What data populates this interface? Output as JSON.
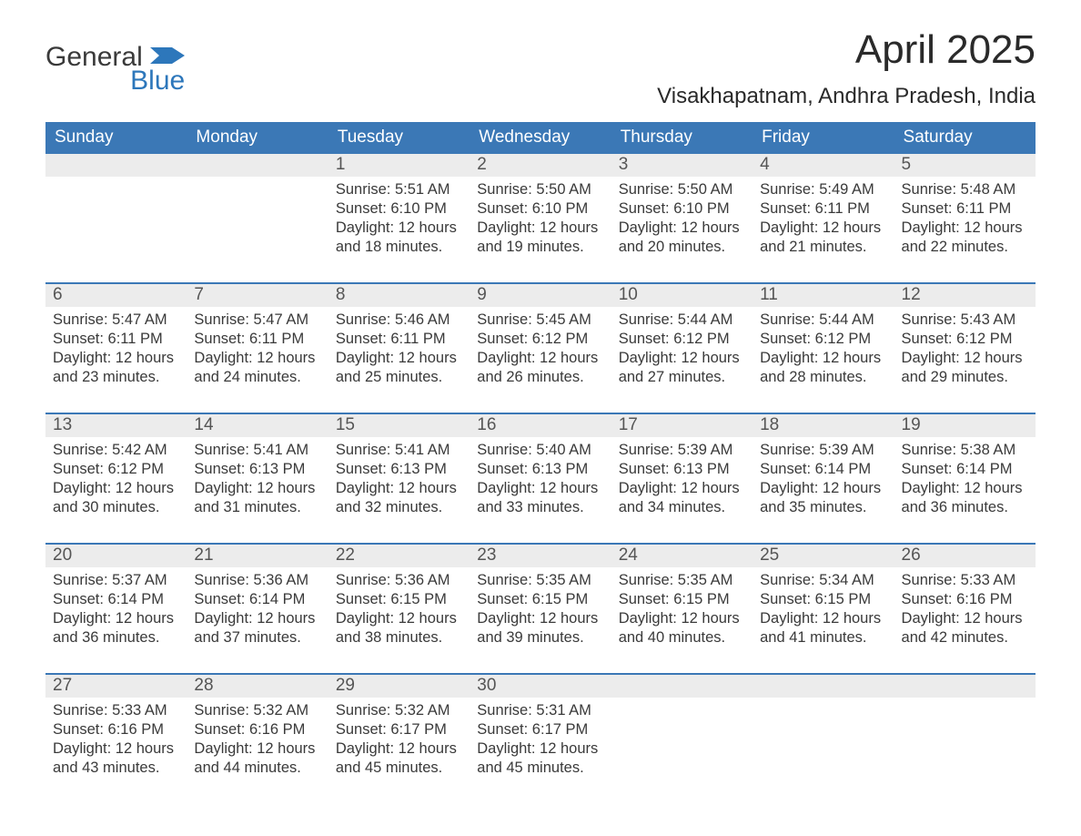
{
  "brand": {
    "general": "General",
    "blue": "Blue",
    "icon_color": "#2d77bb"
  },
  "header": {
    "title": "April 2025",
    "subtitle": "Visakhapatnam, Andhra Pradesh, India"
  },
  "colors": {
    "header_row_bg": "#3b78b6",
    "header_row_text": "#ffffff",
    "week_topline": "#3b78b6",
    "date_bg": "#ececec",
    "date_text": "#555555",
    "body_text": "#3a3a3a",
    "page_bg": "#ffffff"
  },
  "day_headers": [
    "Sunday",
    "Monday",
    "Tuesday",
    "Wednesday",
    "Thursday",
    "Friday",
    "Saturday"
  ],
  "weeks": [
    [
      {
        "date": "",
        "lines": []
      },
      {
        "date": "",
        "lines": []
      },
      {
        "date": "1",
        "lines": [
          "Sunrise: 5:51 AM",
          "Sunset: 6:10 PM",
          "Daylight: 12 hours and 18 minutes."
        ]
      },
      {
        "date": "2",
        "lines": [
          "Sunrise: 5:50 AM",
          "Sunset: 6:10 PM",
          "Daylight: 12 hours and 19 minutes."
        ]
      },
      {
        "date": "3",
        "lines": [
          "Sunrise: 5:50 AM",
          "Sunset: 6:10 PM",
          "Daylight: 12 hours and 20 minutes."
        ]
      },
      {
        "date": "4",
        "lines": [
          "Sunrise: 5:49 AM",
          "Sunset: 6:11 PM",
          "Daylight: 12 hours and 21 minutes."
        ]
      },
      {
        "date": "5",
        "lines": [
          "Sunrise: 5:48 AM",
          "Sunset: 6:11 PM",
          "Daylight: 12 hours and 22 minutes."
        ]
      }
    ],
    [
      {
        "date": "6",
        "lines": [
          "Sunrise: 5:47 AM",
          "Sunset: 6:11 PM",
          "Daylight: 12 hours and 23 minutes."
        ]
      },
      {
        "date": "7",
        "lines": [
          "Sunrise: 5:47 AM",
          "Sunset: 6:11 PM",
          "Daylight: 12 hours and 24 minutes."
        ]
      },
      {
        "date": "8",
        "lines": [
          "Sunrise: 5:46 AM",
          "Sunset: 6:11 PM",
          "Daylight: 12 hours and 25 minutes."
        ]
      },
      {
        "date": "9",
        "lines": [
          "Sunrise: 5:45 AM",
          "Sunset: 6:12 PM",
          "Daylight: 12 hours and 26 minutes."
        ]
      },
      {
        "date": "10",
        "lines": [
          "Sunrise: 5:44 AM",
          "Sunset: 6:12 PM",
          "Daylight: 12 hours and 27 minutes."
        ]
      },
      {
        "date": "11",
        "lines": [
          "Sunrise: 5:44 AM",
          "Sunset: 6:12 PM",
          "Daylight: 12 hours and 28 minutes."
        ]
      },
      {
        "date": "12",
        "lines": [
          "Sunrise: 5:43 AM",
          "Sunset: 6:12 PM",
          "Daylight: 12 hours and 29 minutes."
        ]
      }
    ],
    [
      {
        "date": "13",
        "lines": [
          "Sunrise: 5:42 AM",
          "Sunset: 6:12 PM",
          "Daylight: 12 hours and 30 minutes."
        ]
      },
      {
        "date": "14",
        "lines": [
          "Sunrise: 5:41 AM",
          "Sunset: 6:13 PM",
          "Daylight: 12 hours and 31 minutes."
        ]
      },
      {
        "date": "15",
        "lines": [
          "Sunrise: 5:41 AM",
          "Sunset: 6:13 PM",
          "Daylight: 12 hours and 32 minutes."
        ]
      },
      {
        "date": "16",
        "lines": [
          "Sunrise: 5:40 AM",
          "Sunset: 6:13 PM",
          "Daylight: 12 hours and 33 minutes."
        ]
      },
      {
        "date": "17",
        "lines": [
          "Sunrise: 5:39 AM",
          "Sunset: 6:13 PM",
          "Daylight: 12 hours and 34 minutes."
        ]
      },
      {
        "date": "18",
        "lines": [
          "Sunrise: 5:39 AM",
          "Sunset: 6:14 PM",
          "Daylight: 12 hours and 35 minutes."
        ]
      },
      {
        "date": "19",
        "lines": [
          "Sunrise: 5:38 AM",
          "Sunset: 6:14 PM",
          "Daylight: 12 hours and 36 minutes."
        ]
      }
    ],
    [
      {
        "date": "20",
        "lines": [
          "Sunrise: 5:37 AM",
          "Sunset: 6:14 PM",
          "Daylight: 12 hours and 36 minutes."
        ]
      },
      {
        "date": "21",
        "lines": [
          "Sunrise: 5:36 AM",
          "Sunset: 6:14 PM",
          "Daylight: 12 hours and 37 minutes."
        ]
      },
      {
        "date": "22",
        "lines": [
          "Sunrise: 5:36 AM",
          "Sunset: 6:15 PM",
          "Daylight: 12 hours and 38 minutes."
        ]
      },
      {
        "date": "23",
        "lines": [
          "Sunrise: 5:35 AM",
          "Sunset: 6:15 PM",
          "Daylight: 12 hours and 39 minutes."
        ]
      },
      {
        "date": "24",
        "lines": [
          "Sunrise: 5:35 AM",
          "Sunset: 6:15 PM",
          "Daylight: 12 hours and 40 minutes."
        ]
      },
      {
        "date": "25",
        "lines": [
          "Sunrise: 5:34 AM",
          "Sunset: 6:15 PM",
          "Daylight: 12 hours and 41 minutes."
        ]
      },
      {
        "date": "26",
        "lines": [
          "Sunrise: 5:33 AM",
          "Sunset: 6:16 PM",
          "Daylight: 12 hours and 42 minutes."
        ]
      }
    ],
    [
      {
        "date": "27",
        "lines": [
          "Sunrise: 5:33 AM",
          "Sunset: 6:16 PM",
          "Daylight: 12 hours and 43 minutes."
        ]
      },
      {
        "date": "28",
        "lines": [
          "Sunrise: 5:32 AM",
          "Sunset: 6:16 PM",
          "Daylight: 12 hours and 44 minutes."
        ]
      },
      {
        "date": "29",
        "lines": [
          "Sunrise: 5:32 AM",
          "Sunset: 6:17 PM",
          "Daylight: 12 hours and 45 minutes."
        ]
      },
      {
        "date": "30",
        "lines": [
          "Sunrise: 5:31 AM",
          "Sunset: 6:17 PM",
          "Daylight: 12 hours and 45 minutes."
        ]
      },
      {
        "date": "",
        "lines": []
      },
      {
        "date": "",
        "lines": []
      },
      {
        "date": "",
        "lines": []
      }
    ]
  ]
}
